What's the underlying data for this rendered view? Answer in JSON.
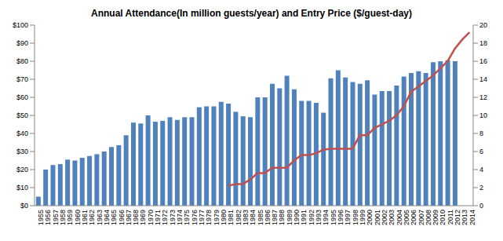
{
  "chart_data": {
    "type": "bar",
    "title": "Annual Attendance(In million guests/year) and Entry Price ($/guest-day)",
    "categories": [
      "1955",
      "1956",
      "1957",
      "1958",
      "1959",
      "1960",
      "1961",
      "1962",
      "1963",
      "1964",
      "1965",
      "1966",
      "1967",
      "1968",
      "1969",
      "1970",
      "1971",
      "1972",
      "1973",
      "1974",
      "1975",
      "1976",
      "1977",
      "1978",
      "1979",
      "1980",
      "1981",
      "1982",
      "1983",
      "1984",
      "1985",
      "1986",
      "1987",
      "1988",
      "1989",
      "1990",
      "1991",
      "1992",
      "1993",
      "1994",
      "1995",
      "1996",
      "1997",
      "1998",
      "1999",
      "2000",
      "2001",
      "2002",
      "2003",
      "2004",
      "2005",
      "2006",
      "2007",
      "2008",
      "2009",
      "2010",
      "2011",
      "2012",
      "2013",
      "2014"
    ],
    "series": [
      {
        "type": "bar",
        "axis": "y2",
        "color": "#4f81bd",
        "values": [
          1.0,
          4.0,
          4.5,
          4.6,
          5.1,
          5.0,
          5.3,
          5.5,
          5.7,
          6.0,
          6.5,
          6.7,
          7.8,
          9.2,
          9.1,
          10.0,
          9.3,
          9.4,
          9.8,
          9.5,
          9.8,
          9.8,
          10.9,
          11.0,
          11.0,
          11.5,
          11.3,
          10.4,
          9.9,
          9.8,
          12.0,
          12.0,
          13.5,
          13.0,
          14.4,
          12.9,
          11.6,
          11.6,
          11.4,
          10.3,
          14.1,
          15.0,
          14.2,
          13.7,
          13.5,
          13.9,
          12.3,
          12.7,
          12.7,
          13.3,
          14.3,
          14.7,
          14.9,
          14.7,
          15.9,
          16.0,
          16.1,
          16.0,
          null,
          null
        ]
      },
      {
        "type": "line",
        "color": "#c0504d",
        "marker": "none",
        "line_style": "solid",
        "values": [
          null,
          null,
          null,
          null,
          null,
          null,
          null,
          null,
          null,
          null,
          null,
          null,
          null,
          null,
          null,
          null,
          null,
          null,
          null,
          null,
          null,
          null,
          null,
          null,
          null,
          null,
          11,
          12,
          12,
          14.5,
          18,
          18,
          21,
          21,
          21,
          25,
          28,
          28,
          29,
          31,
          31.5,
          31.5,
          31.5,
          31.5,
          39,
          39,
          43,
          45,
          47,
          50,
          55,
          63,
          66,
          69,
          72,
          76,
          80,
          87,
          92,
          96
        ]
      }
    ],
    "ylim": [
      0,
      100
    ],
    "yticks": [
      {
        "value": 0,
        "label": "$0"
      },
      {
        "value": 10,
        "label": "$10"
      },
      {
        "value": 20,
        "label": "$20"
      },
      {
        "value": 30,
        "label": "$30"
      },
      {
        "value": 40,
        "label": "$40"
      },
      {
        "value": 50,
        "label": "$50"
      },
      {
        "value": 60,
        "label": "$60"
      },
      {
        "value": 70,
        "label": "$70"
      },
      {
        "value": 80,
        "label": "$80"
      },
      {
        "value": 90,
        "label": "$90"
      },
      {
        "value": 100,
        "label": "$100"
      }
    ],
    "y2lim": [
      0,
      20
    ],
    "y2ticks": [
      0,
      2,
      4,
      6,
      8,
      10,
      12,
      14,
      16,
      18,
      20
    ],
    "grid": false
  }
}
